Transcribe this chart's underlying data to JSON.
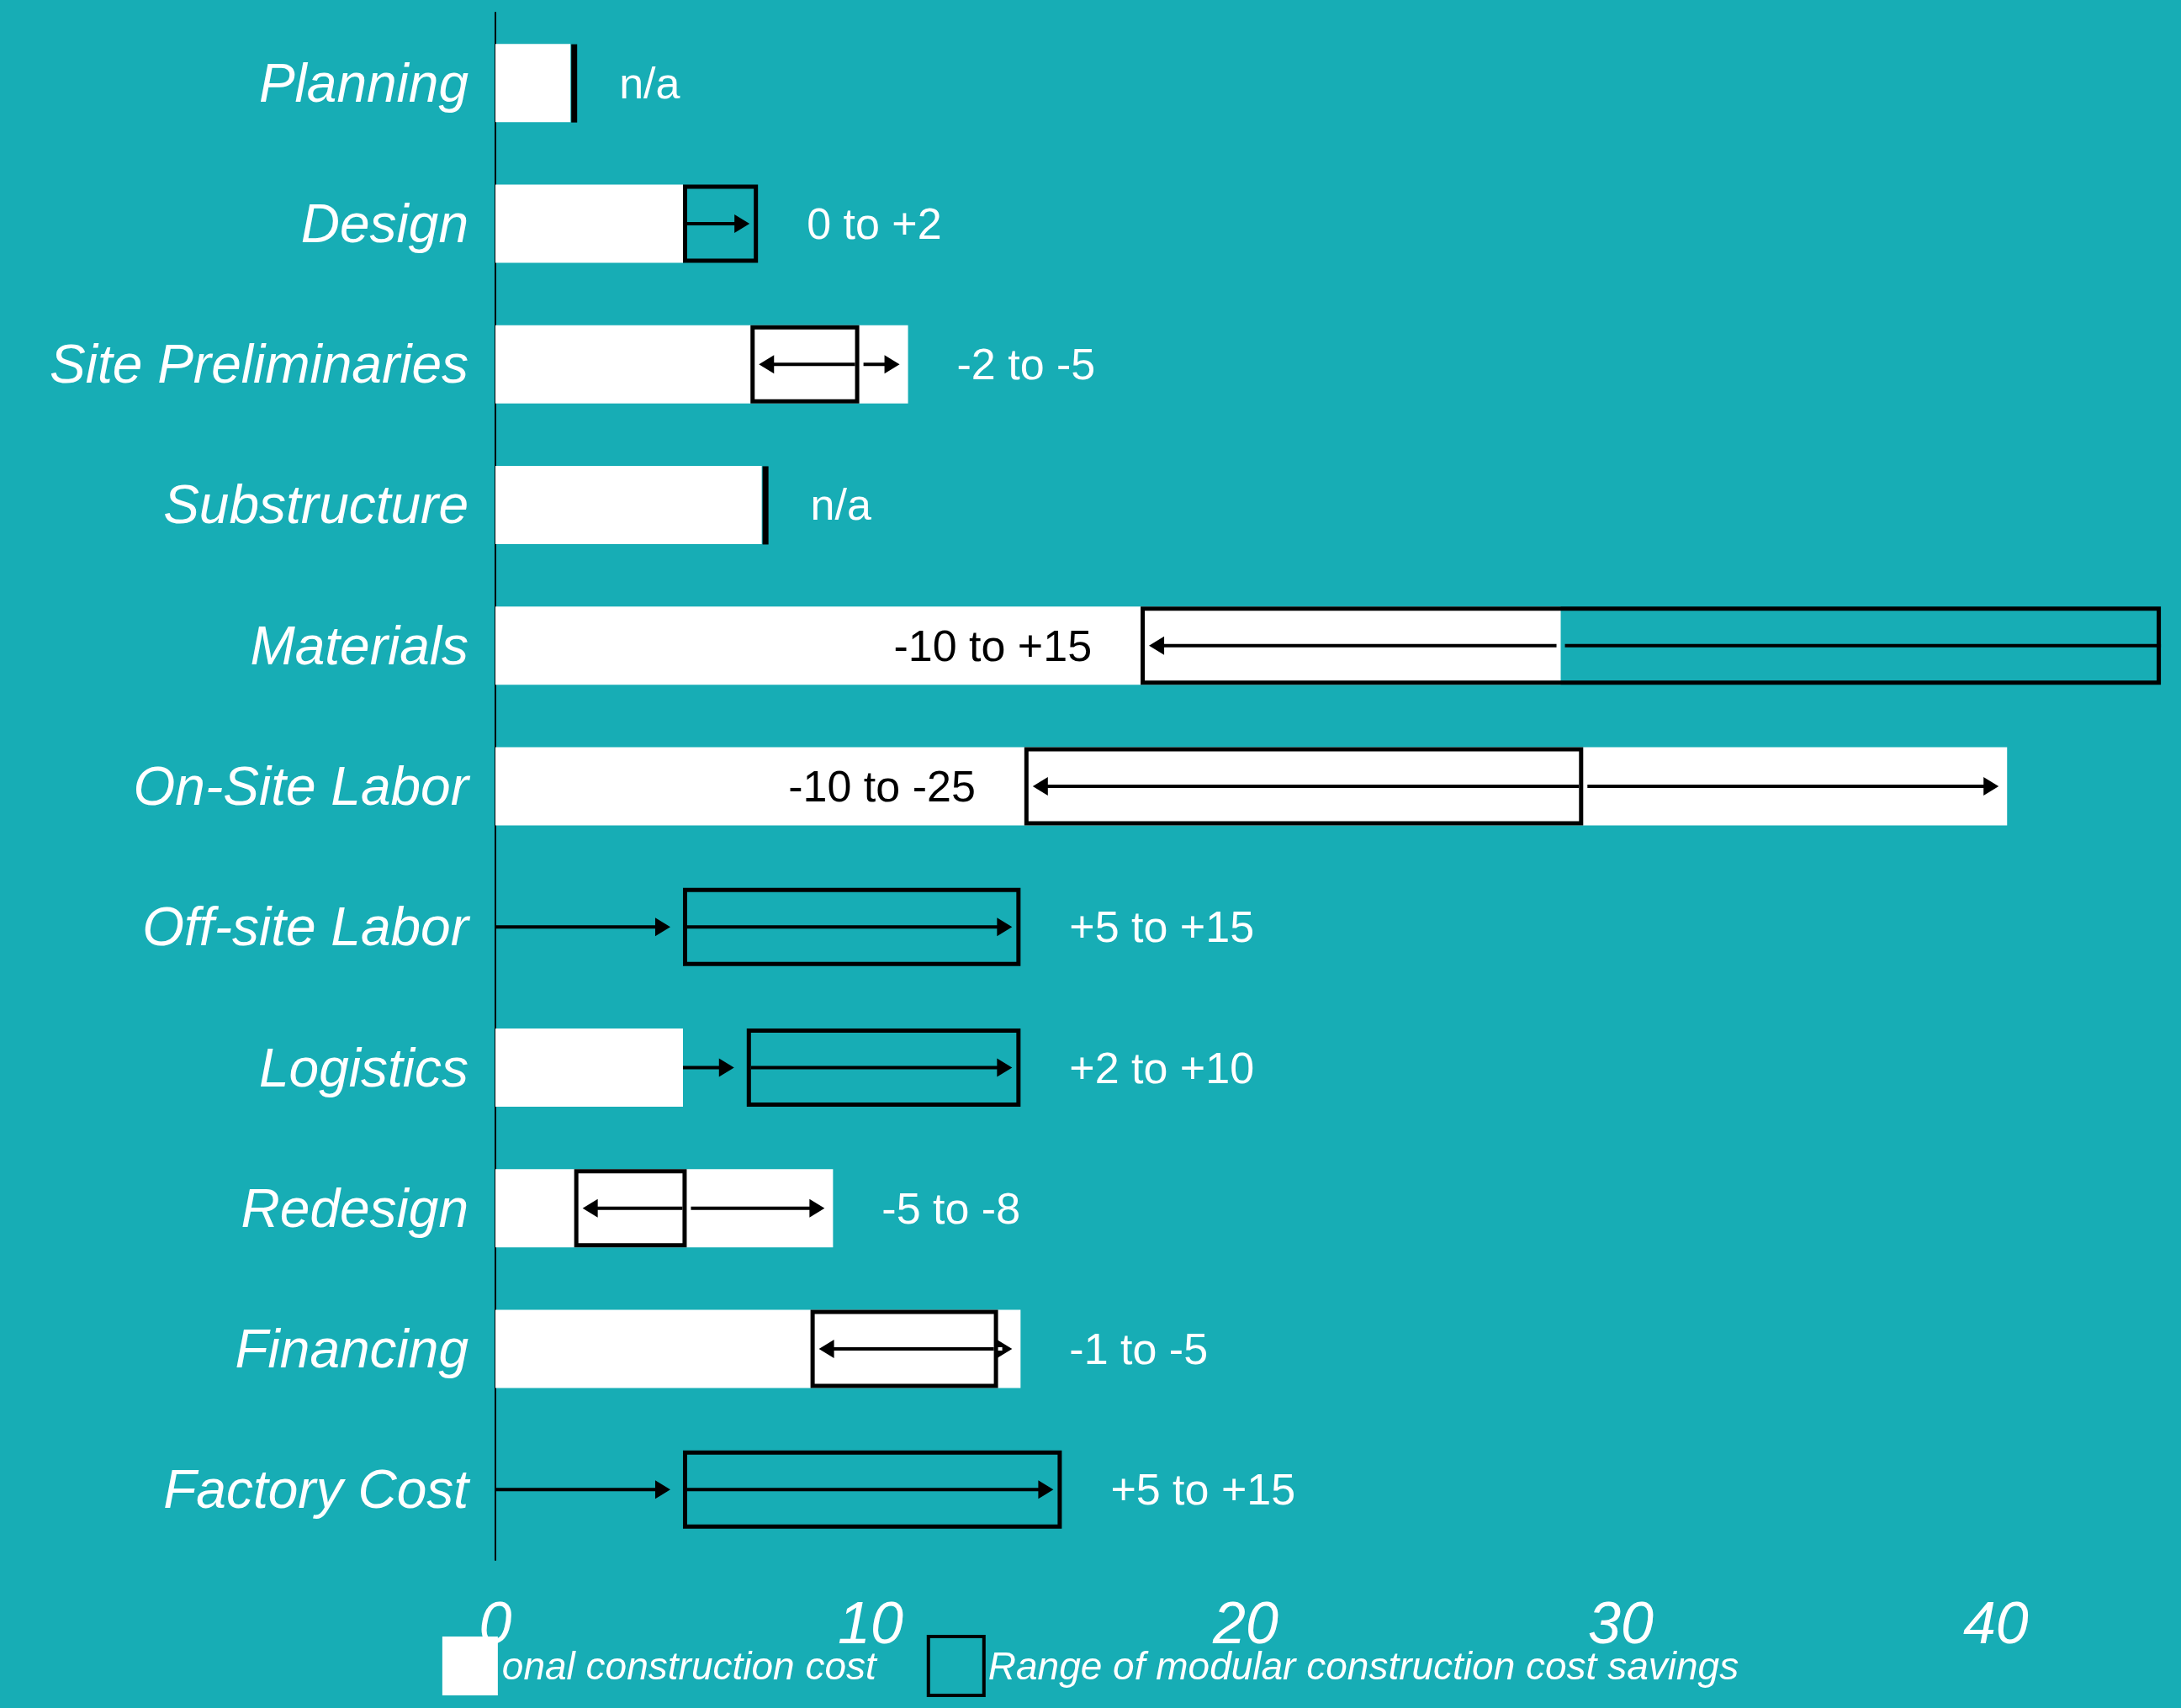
{
  "chart_data": {
    "type": "bar",
    "orientation": "horizontal",
    "categories": [
      "Planning",
      "Design",
      "Site Preliminaries",
      "Substructure",
      "Materials",
      "On-Site Labor",
      "Off-site Labor",
      "Logistics",
      "Redesign",
      "Financing",
      "Factory Cost"
    ],
    "series": [
      {
        "name": "onal construction cost",
        "color": "#ffffff",
        "values": [
          2,
          5,
          11,
          7.1,
          28.4,
          40.3,
          0,
          5,
          9,
          14,
          0
        ]
      },
      {
        "name": "Range of modular construction cost savings",
        "color": "#000000",
        "base": [
          null,
          5,
          6.8,
          null,
          17.2,
          14.1,
          5,
          6.7,
          2.1,
          8.4,
          5
        ],
        "values": [
          null,
          2,
          2.9,
          null,
          27.2,
          14.9,
          9,
          7.3,
          3,
          5,
          10.1
        ]
      }
    ],
    "annotations": [
      "n/a",
      "0 to +2",
      "-2 to -5",
      "n/a",
      "-10 to +15",
      "-10 to -25",
      "+5 to +15",
      "+2 to +10",
      "-5 to -8",
      "-1 to -5",
      "+5 to +15"
    ],
    "xlim": [
      0,
      44.6
    ],
    "xticks": [
      0,
      10,
      20,
      30,
      40
    ],
    "grid": false,
    "legend": "bottom"
  }
}
